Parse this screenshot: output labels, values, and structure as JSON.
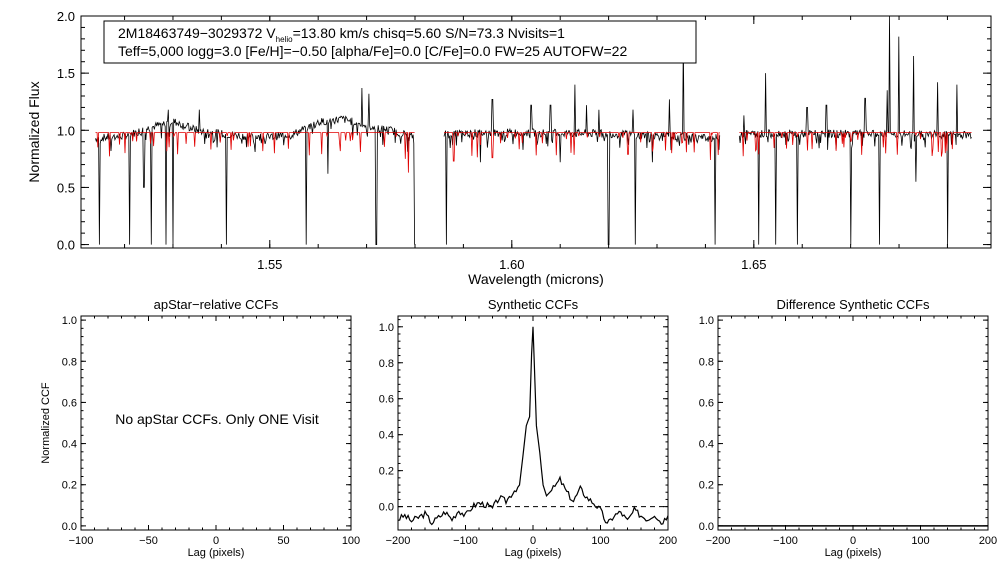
{
  "info_box": {
    "line1_a": "2M18463749−3029372  V",
    "line1_sub": "helio",
    "line1_b": "=13.80 km/s  chisq=5.60  S/N=73.3  Nvisits=1",
    "line2": "Teff=5,000 logg=3.0 [Fe/H]=−0.50 [alpha/Fe]=0.0 [C/Fe]=0.0 FW=25 AUTOFW=22"
  },
  "panel_note": "No apStar CCFs.  Only ONE Visit",
  "colors": {
    "observed": "#000000",
    "model": "#e00000",
    "frame": "#000000"
  },
  "chart_data": [
    {
      "type": "line",
      "name": "spectrum",
      "title": "",
      "xlabel": "Wavelength (microns)",
      "ylabel": "Normalized Flux",
      "xlim": [
        1.511,
        1.699
      ],
      "ylim": [
        -0.03,
        2.0
      ],
      "xticks": [
        1.55,
        1.6,
        1.65
      ],
      "xtick_labels": [
        "1.55",
        "1.60",
        "1.65"
      ],
      "yticks": [
        0.0,
        0.5,
        1.0,
        1.5,
        2.0
      ],
      "ytick_labels": [
        "0.0",
        "0.5",
        "1.0",
        "1.5",
        "2.0"
      ],
      "chips": [
        [
          1.514,
          1.58
        ],
        [
          1.586,
          1.643
        ],
        [
          1.647,
          1.695
        ]
      ],
      "series": [
        {
          "role": "observed",
          "continuum": [
            [
              1.514,
              0.93
            ],
            [
              1.52,
              0.95
            ],
            [
              1.525,
              1.02
            ],
            [
              1.53,
              1.08
            ],
            [
              1.535,
              1.0
            ],
            [
              1.54,
              0.97
            ],
            [
              1.545,
              0.95
            ],
            [
              1.55,
              0.94
            ],
            [
              1.555,
              0.97
            ],
            [
              1.56,
              1.07
            ],
            [
              1.565,
              1.1
            ],
            [
              1.57,
              1.04
            ],
            [
              1.575,
              1.0
            ],
            [
              1.58,
              0.94
            ],
            [
              1.586,
              0.97
            ],
            [
              1.6,
              0.98
            ],
            [
              1.62,
              0.97
            ],
            [
              1.643,
              0.93
            ],
            [
              1.647,
              0.97
            ],
            [
              1.67,
              0.97
            ],
            [
              1.695,
              0.96
            ]
          ],
          "dips": [
            [
              1.5148,
              0.0
            ],
            [
              1.521,
              0.0
            ],
            [
              1.524,
              0.5
            ],
            [
              1.5255,
              0.0
            ],
            [
              1.5285,
              0.0
            ],
            [
              1.53,
              0.0
            ],
            [
              1.541,
              0.0
            ],
            [
              1.5575,
              0.0
            ],
            [
              1.562,
              0.62
            ],
            [
              1.572,
              0.0
            ],
            [
              1.58,
              0.0
            ],
            [
              1.5865,
              0.0
            ],
            [
              1.5935,
              0.72
            ],
            [
              1.61,
              0.72
            ],
            [
              1.62,
              0.0
            ],
            [
              1.6255,
              0.0
            ],
            [
              1.629,
              0.72
            ],
            [
              1.642,
              0.0
            ],
            [
              1.648,
              0.0
            ],
            [
              1.651,
              0.0
            ],
            [
              1.6545,
              0.0
            ],
            [
              1.659,
              0.0
            ],
            [
              1.67,
              0.0
            ],
            [
              1.676,
              0.0
            ],
            [
              1.6835,
              0.55
            ],
            [
              1.69,
              0.0
            ]
          ],
          "spikes": [
            [
              1.529,
              1.18
            ],
            [
              1.5355,
              1.18
            ],
            [
              1.569,
              1.37
            ],
            [
              1.5705,
              1.32
            ],
            [
              1.596,
              1.27
            ],
            [
              1.604,
              1.22
            ],
            [
              1.608,
              1.22
            ],
            [
              1.613,
              1.4
            ],
            [
              1.6155,
              1.22
            ],
            [
              1.618,
              1.18
            ],
            [
              1.625,
              1.18
            ],
            [
              1.6325,
              1.27
            ],
            [
              1.6355,
              1.8
            ],
            [
              1.644,
              1.18
            ],
            [
              1.648,
              1.13
            ],
            [
              1.6525,
              1.5
            ],
            [
              1.661,
              1.2
            ],
            [
              1.665,
              1.22
            ],
            [
              1.673,
              1.28
            ],
            [
              1.6775,
              1.35
            ],
            [
              1.678,
              2.0
            ],
            [
              1.68,
              1.82
            ],
            [
              1.683,
              1.65
            ],
            [
              1.688,
              1.42
            ],
            [
              1.692,
              1.4
            ]
          ]
        },
        {
          "role": "model",
          "continuum": [
            [
              1.514,
              0.98
            ],
            [
              1.58,
              0.98
            ],
            [
              1.586,
              0.98
            ],
            [
              1.643,
              0.98
            ],
            [
              1.647,
              0.98
            ],
            [
              1.695,
              0.98
            ]
          ],
          "dips": [
            [
              1.578,
              0.75
            ],
            [
              1.5787,
              0.63
            ],
            [
              1.588,
              0.73
            ],
            [
              1.596,
              0.76
            ],
            [
              1.605,
              0.78
            ],
            [
              1.624,
              0.79
            ],
            [
              1.633,
              0.8
            ],
            [
              1.641,
              0.74
            ],
            [
              1.651,
              0.79
            ],
            [
              1.667,
              0.82
            ],
            [
              1.6895,
              0.8
            ]
          ]
        }
      ]
    },
    {
      "type": "line",
      "name": "apstar-ccf",
      "title": "apStar−relative CCFs",
      "xlabel": "Lag (pixels)",
      "ylabel": "Normalized CCF",
      "xlim": [
        -100,
        100
      ],
      "ylim": [
        -0.02,
        1.02
      ],
      "xticks": [
        -100,
        -50,
        0,
        50,
        100
      ],
      "xtick_labels": [
        "−100",
        "−50",
        "0",
        "50",
        "100"
      ],
      "yticks": [
        0.0,
        0.2,
        0.4,
        0.6,
        0.8,
        1.0
      ],
      "ytick_labels": [
        "0.0",
        "0.2",
        "0.4",
        "0.6",
        "0.8",
        "1.0"
      ],
      "series": []
    },
    {
      "type": "line",
      "name": "synthetic-ccf",
      "title": "Synthetic CCFs",
      "xlabel": "Lag (pixels)",
      "ylabel": "",
      "xlim": [
        -200,
        200
      ],
      "ylim": [
        -0.13,
        1.06
      ],
      "xticks": [
        -200,
        -100,
        0,
        100,
        200
      ],
      "xtick_labels": [
        "−200",
        "−100",
        "0",
        "100",
        "200"
      ],
      "yticks": [
        0.0,
        0.2,
        0.4,
        0.6,
        0.8,
        1.0
      ],
      "ytick_labels": [
        "0.0",
        "0.2",
        "0.4",
        "0.6",
        "0.8",
        "1.0"
      ],
      "zero_line": 0.0,
      "series": [
        {
          "x": [
            -200,
            -190,
            -180,
            -170,
            -160,
            -150,
            -140,
            -130,
            -120,
            -110,
            -100,
            -90,
            -80,
            -70,
            -60,
            -50,
            -40,
            -30,
            -20,
            -15,
            -10,
            -5,
            -2,
            0,
            2,
            5,
            10,
            15,
            20,
            30,
            40,
            50,
            60,
            70,
            80,
            90,
            100,
            110,
            120,
            130,
            140,
            150,
            160,
            170,
            180,
            190,
            200
          ],
          "y": [
            -0.07,
            -0.05,
            -0.08,
            -0.06,
            -0.04,
            -0.09,
            -0.06,
            -0.03,
            -0.07,
            -0.02,
            -0.05,
            0.0,
            0.02,
            0.01,
            -0.01,
            0.05,
            0.03,
            0.08,
            0.12,
            0.28,
            0.45,
            0.5,
            0.85,
            1.0,
            0.78,
            0.45,
            0.3,
            0.12,
            0.06,
            0.1,
            0.15,
            0.08,
            0.03,
            0.1,
            0.05,
            0.02,
            -0.02,
            -0.1,
            -0.05,
            -0.03,
            -0.08,
            -0.02,
            -0.05,
            -0.07,
            -0.04,
            -0.09,
            -0.05
          ]
        }
      ]
    },
    {
      "type": "line",
      "name": "difference-ccf",
      "title": "Difference Synthetic CCFs",
      "xlabel": "Lag (pixels)",
      "ylabel": "",
      "xlim": [
        -200,
        200
      ],
      "ylim": [
        -0.02,
        1.02
      ],
      "xticks": [
        -200,
        -100,
        0,
        100,
        200
      ],
      "xtick_labels": [
        "−200",
        "−100",
        "0",
        "100",
        "200"
      ],
      "yticks": [
        0.0,
        0.2,
        0.4,
        0.6,
        0.8,
        1.0
      ],
      "ytick_labels": [
        "0.0",
        "0.2",
        "0.4",
        "0.6",
        "0.8",
        "1.0"
      ],
      "series": [
        {
          "x": [
            -200,
            200
          ],
          "y": [
            0.0,
            0.0
          ]
        }
      ]
    }
  ]
}
